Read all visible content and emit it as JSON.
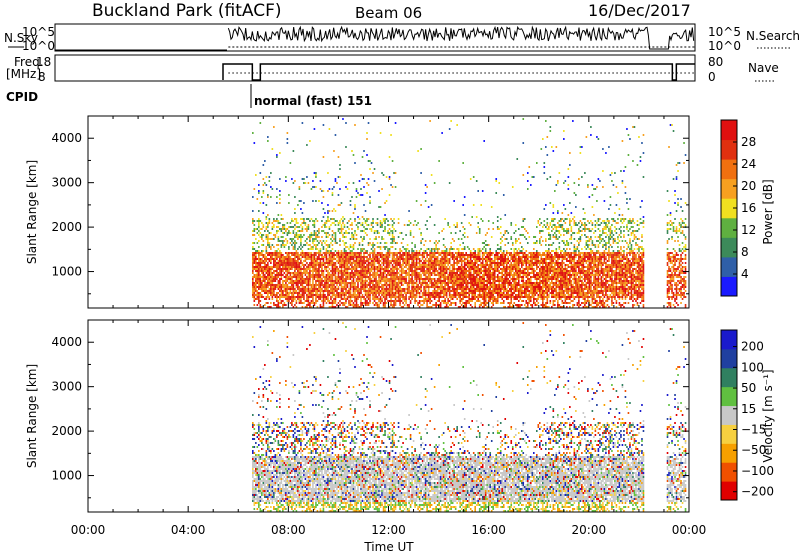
{
  "header": {
    "site": "Buckland Park (fitACF)",
    "beam": "Beam 06",
    "date": "16/Dec/2017"
  },
  "nsky_panel": {
    "left_label": "N.Sky",
    "left_ticks": [
      "10^5",
      "10^0"
    ],
    "right_ticks": [
      "10^5",
      "10^0"
    ],
    "right_label": "N.Search"
  },
  "freq_panel": {
    "left_label_line1": "Freq.",
    "left_label_line2": "[MHz]",
    "left_ticks": [
      "18",
      "8"
    ],
    "right_ticks": [
      "80",
      "0"
    ],
    "right_label": "Nave"
  },
  "cpid_panel": {
    "label": "CPID",
    "program": "normal (fast) 151"
  },
  "colors": {
    "power_scale": [
      "#1a1aff",
      "#2f5fa8",
      "#3c8a5a",
      "#5fb040",
      "#f0e020",
      "#f7a020",
      "#f07010",
      "#e03010",
      "#e01010"
    ],
    "velocity_scale": [
      "#e00000",
      "#f05000",
      "#f7a000",
      "#f7d040",
      "#c8c8c8",
      "#60c040",
      "#308060",
      "#2040a0",
      "#1a1acc"
    ]
  },
  "chart_data": [
    {
      "type": "heatmap",
      "name": "power",
      "ylabel": "Slant Range [km]",
      "y_ticks": [
        1000,
        2000,
        3000,
        4000
      ],
      "ylim": [
        180,
        4500
      ],
      "x_ticks": [
        "00:00",
        "04:00",
        "08:00",
        "12:00",
        "16:00",
        "20:00",
        "00:00"
      ],
      "xlim_hours": [
        0,
        24
      ],
      "colorbar": {
        "label": "Power [dB]",
        "ticks": [
          4,
          8,
          12,
          16,
          20,
          24,
          28
        ],
        "range": [
          0,
          32
        ]
      }
    },
    {
      "type": "heatmap",
      "name": "velocity",
      "ylabel": "Slant Range [km]",
      "y_ticks": [
        1000,
        2000,
        3000,
        4000
      ],
      "ylim": [
        180,
        4500
      ],
      "x_ticks": [
        "00:00",
        "04:00",
        "08:00",
        "12:00",
        "16:00",
        "20:00",
        "00:00"
      ],
      "xlim_hours": [
        0,
        24
      ],
      "xlabel": "Time UT",
      "colorbar": {
        "label": "Velocity [m s⁻¹]",
        "ticks": [
          -200,
          -100,
          -50,
          -15,
          15,
          50,
          100,
          200
        ]
      }
    }
  ]
}
